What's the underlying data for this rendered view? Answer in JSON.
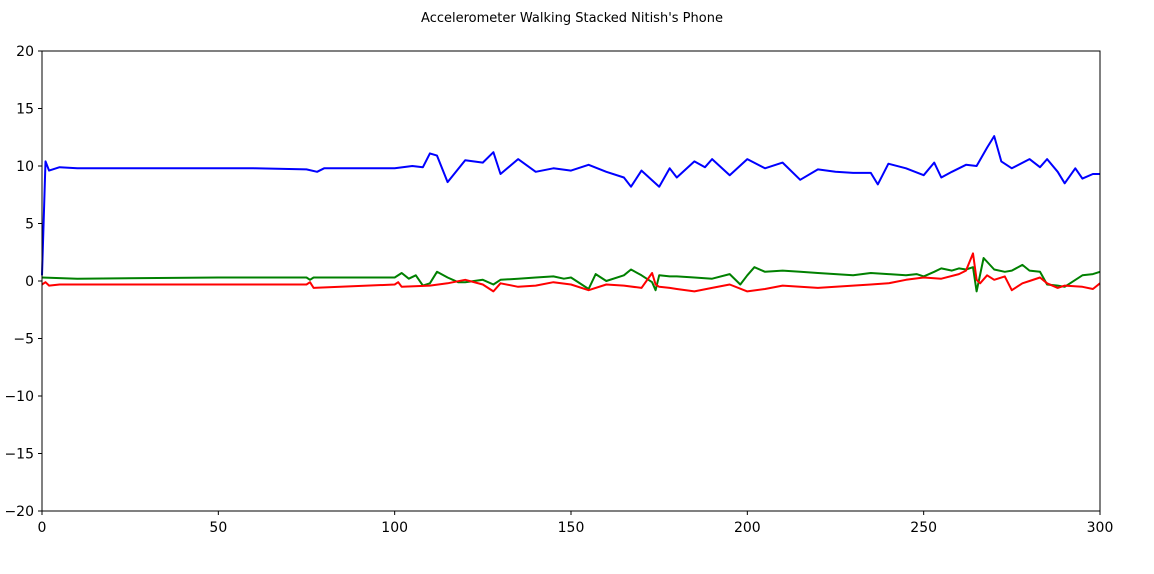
{
  "chart_data": {
    "type": "line",
    "title": "Accelerometer Walking Stacked Nitish's Phone",
    "xlabel": "",
    "ylabel": "",
    "xlim": [
      0,
      300
    ],
    "ylim": [
      -20,
      20
    ],
    "x_ticks": [
      0,
      50,
      100,
      150,
      200,
      250,
      300
    ],
    "y_ticks": [
      20,
      15,
      10,
      5,
      0,
      -5,
      -10,
      -15,
      -20
    ],
    "x_tick_labels": [
      "0",
      "50",
      "100",
      "150",
      "200",
      "250",
      "300"
    ],
    "y_tick_labels": [
      "20",
      "15",
      "10",
      "5",
      "0",
      "−5",
      "−10",
      "−15",
      "−20"
    ],
    "grid": false,
    "legend": null,
    "series": [
      {
        "name": "blue",
        "color": "#0000ff",
        "x": [
          0,
          1,
          2,
          5,
          10,
          20,
          40,
          60,
          75,
          78,
          80,
          100,
          105,
          108,
          110,
          112,
          115,
          120,
          125,
          128,
          130,
          135,
          140,
          145,
          150,
          155,
          160,
          165,
          167,
          170,
          175,
          178,
          180,
          185,
          188,
          190,
          195,
          200,
          205,
          210,
          215,
          220,
          225,
          230,
          235,
          237,
          240,
          245,
          250,
          253,
          255,
          258,
          262,
          265,
          268,
          270,
          272,
          275,
          280,
          283,
          285,
          288,
          290,
          293,
          295,
          298,
          300
        ],
        "y": [
          0.5,
          10.4,
          9.6,
          9.9,
          9.8,
          9.8,
          9.8,
          9.8,
          9.7,
          9.5,
          9.8,
          9.8,
          10.0,
          9.9,
          11.1,
          10.9,
          8.6,
          10.5,
          10.3,
          11.2,
          9.3,
          10.6,
          9.5,
          9.8,
          9.6,
          10.1,
          9.5,
          9.0,
          8.2,
          9.6,
          8.2,
          9.8,
          9.0,
          10.4,
          9.9,
          10.6,
          9.2,
          10.6,
          9.8,
          10.3,
          8.8,
          9.7,
          9.5,
          9.4,
          9.4,
          8.4,
          10.2,
          9.8,
          9.2,
          10.3,
          9.0,
          9.5,
          10.1,
          10.0,
          11.6,
          12.6,
          10.4,
          9.8,
          10.6,
          9.9,
          10.6,
          9.5,
          8.5,
          9.8,
          8.9,
          9.3,
          9.3
        ]
      },
      {
        "name": "green",
        "color": "#008000",
        "x": [
          0,
          10,
          50,
          75,
          76,
          77,
          100,
          102,
          104,
          106,
          108,
          110,
          112,
          115,
          118,
          120,
          125,
          128,
          130,
          135,
          140,
          145,
          148,
          150,
          155,
          157,
          160,
          165,
          167,
          170,
          173,
          174,
          175,
          178,
          180,
          185,
          190,
          195,
          198,
          200,
          202,
          205,
          210,
          215,
          220,
          225,
          230,
          235,
          240,
          245,
          248,
          250,
          253,
          255,
          258,
          260,
          262,
          264,
          265,
          267,
          270,
          273,
          275,
          278,
          280,
          283,
          285,
          288,
          290,
          295,
          298,
          300
        ],
        "y": [
          0.3,
          0.2,
          0.3,
          0.3,
          0.1,
          0.3,
          0.3,
          0.7,
          0.2,
          0.5,
          -0.4,
          -0.2,
          0.8,
          0.3,
          -0.1,
          -0.1,
          0.1,
          -0.3,
          0.1,
          0.2,
          0.3,
          0.4,
          0.2,
          0.3,
          -0.7,
          0.6,
          0.0,
          0.5,
          1.0,
          0.5,
          -0.1,
          -0.8,
          0.5,
          0.4,
          0.4,
          0.3,
          0.2,
          0.6,
          -0.3,
          0.5,
          1.2,
          0.8,
          0.9,
          0.8,
          0.7,
          0.6,
          0.5,
          0.7,
          0.6,
          0.5,
          0.6,
          0.4,
          0.8,
          1.1,
          0.9,
          1.1,
          1.0,
          1.2,
          -0.9,
          2.0,
          1.0,
          0.8,
          0.9,
          1.4,
          0.9,
          0.8,
          -0.3,
          -0.4,
          -0.5,
          0.5,
          0.6,
          0.8
        ]
      },
      {
        "name": "red",
        "color": "#ff0000",
        "x": [
          0,
          1,
          2,
          5,
          10,
          30,
          60,
          75,
          76,
          77,
          100,
          101,
          102,
          110,
          115,
          120,
          125,
          128,
          130,
          135,
          140,
          145,
          150,
          155,
          160,
          165,
          170,
          173,
          174,
          175,
          178,
          180,
          185,
          190,
          195,
          200,
          205,
          210,
          215,
          220,
          225,
          230,
          235,
          240,
          245,
          250,
          255,
          260,
          262,
          264,
          265,
          266,
          268,
          270,
          273,
          275,
          278,
          280,
          283,
          285,
          288,
          290,
          295,
          298,
          300
        ],
        "y": [
          -0.3,
          -0.1,
          -0.4,
          -0.3,
          -0.3,
          -0.3,
          -0.3,
          -0.3,
          -0.1,
          -0.6,
          -0.3,
          -0.1,
          -0.5,
          -0.4,
          -0.2,
          0.1,
          -0.3,
          -0.9,
          -0.2,
          -0.5,
          -0.4,
          -0.1,
          -0.3,
          -0.8,
          -0.3,
          -0.4,
          -0.6,
          0.7,
          -0.3,
          -0.5,
          -0.6,
          -0.7,
          -0.9,
          -0.6,
          -0.3,
          -0.9,
          -0.7,
          -0.4,
          -0.5,
          -0.6,
          -0.5,
          -0.4,
          -0.3,
          -0.2,
          0.1,
          0.3,
          0.2,
          0.6,
          0.9,
          2.4,
          0.1,
          -0.2,
          0.5,
          0.1,
          0.4,
          -0.8,
          -0.2,
          0.0,
          0.3,
          -0.2,
          -0.6,
          -0.4,
          -0.5,
          -0.7,
          -0.2
        ]
      }
    ]
  }
}
